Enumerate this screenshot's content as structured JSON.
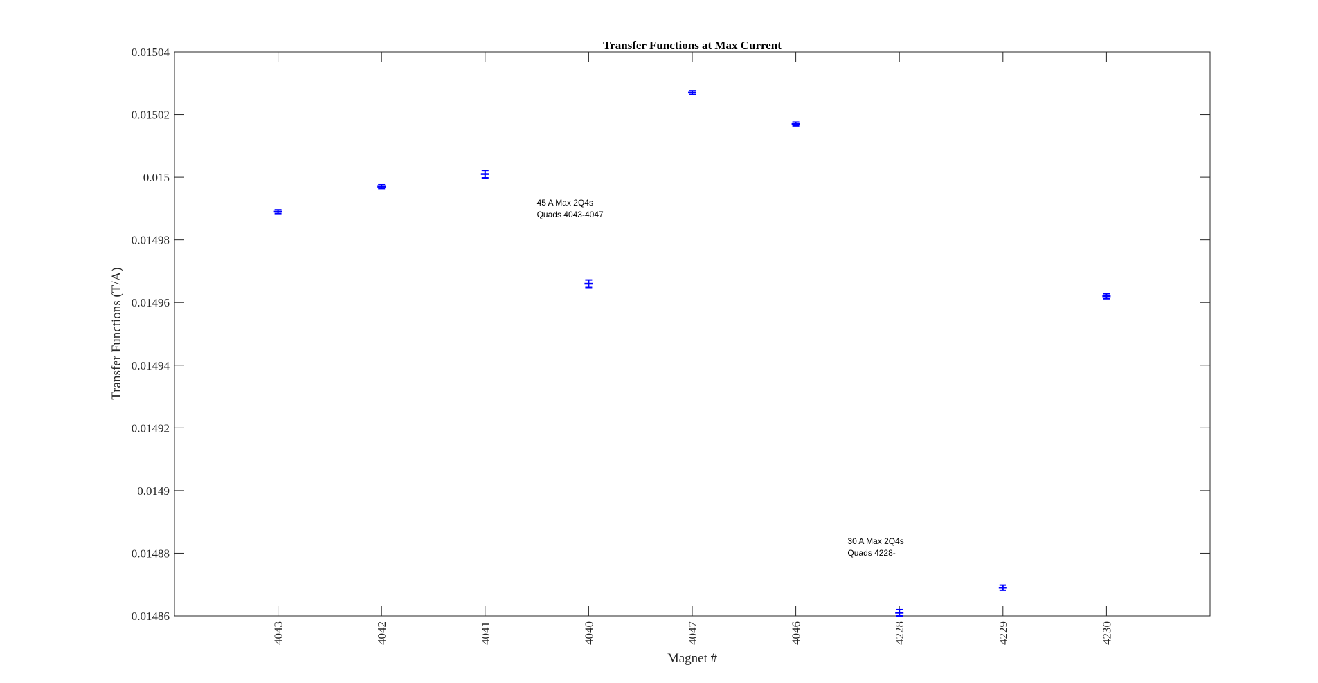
{
  "chart_data": {
    "type": "scatter",
    "title": "Transfer Functions at Max Current",
    "xlabel": "Magnet #",
    "ylabel": "Transfer Functions (T/A)",
    "categories": [
      "4043",
      "4042",
      "4041",
      "4040",
      "4047",
      "4046",
      "4228",
      "4229",
      "4230"
    ],
    "series": [
      {
        "values": [
          0.014989,
          0.014997,
          0.015001,
          0.014966,
          0.015027,
          0.015017,
          0.014861,
          0.014869,
          0.014962
        ],
        "errors": [
          6e-07,
          6e-07,
          1.2e-06,
          1.2e-06,
          6e-07,
          6e-07,
          1e-06,
          8e-07,
          8e-07
        ],
        "color": "#0000ff"
      }
    ],
    "xlim": [
      0,
      10
    ],
    "ylim": [
      0.01486,
      0.01504
    ],
    "yticks": [
      0.01486,
      0.01488,
      0.0149,
      0.01492,
      0.01494,
      0.01496,
      0.01498,
      0.015,
      0.01502,
      0.01504
    ],
    "ytick_labels": [
      "0.01486",
      "0.01488",
      "0.0149",
      "0.01492",
      "0.01494",
      "0.01496",
      "0.01498",
      "0.015",
      "0.01502",
      "0.01504"
    ],
    "grid": false,
    "annotations": [
      {
        "lines": [
          "45 A Max 2Q4s",
          "Quads 4043-4047"
        ],
        "x": 3.5,
        "y": 0.014991
      },
      {
        "lines": [
          "30 A Max 2Q4s",
          "Quads 4228-"
        ],
        "x": 6.5,
        "y": 0.014883
      }
    ]
  }
}
